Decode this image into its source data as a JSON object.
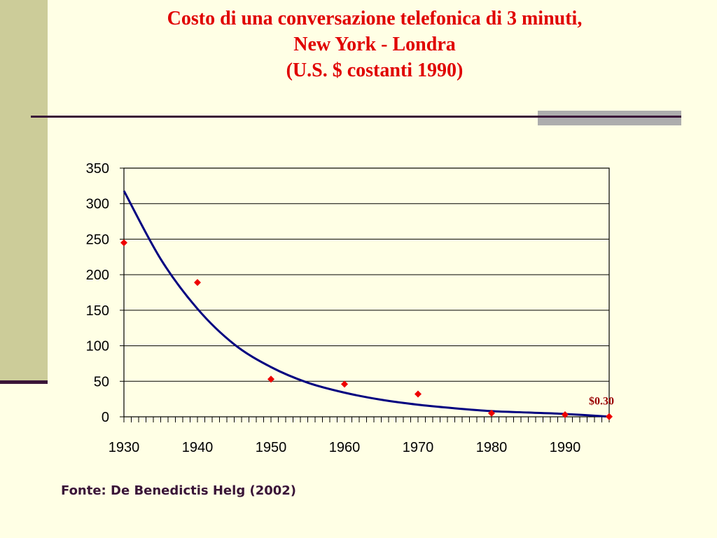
{
  "title": {
    "line1": "Costo di una conversazione telefonica di 3 minuti,",
    "line2": "New York - Londra",
    "line3": "(U.S. $ costanti 1990)"
  },
  "source_note": "Fonte: De Benedictis Helg (2002)",
  "colors": {
    "background": "#FFFFE5",
    "side_band": "#CCCC99",
    "rule": "#3A1538",
    "title": "#E00000",
    "curve": "#000080",
    "points": "#EE0000",
    "annotation": "#990000"
  },
  "chart_data": {
    "type": "scatter",
    "title": "Costo di una conversazione telefonica di 3 minuti, New York - Londra (U.S. $ costanti 1990)",
    "xlim": [
      1930,
      1996
    ],
    "ylim": [
      0,
      350
    ],
    "x_ticks": [
      1930,
      1940,
      1950,
      1960,
      1970,
      1980,
      1990
    ],
    "y_ticks": [
      0,
      50,
      100,
      150,
      200,
      250,
      300,
      350
    ],
    "grid": "horizontal",
    "series": [
      {
        "kind": "points",
        "marker": "diamond",
        "x": [
          1930,
          1940,
          1950,
          1960,
          1970,
          1980,
          1990,
          1996
        ],
        "y": [
          245,
          189,
          53,
          46,
          32,
          5,
          3,
          0.3
        ]
      },
      {
        "kind": "trendline",
        "x": [
          1930,
          1935,
          1940,
          1945,
          1950,
          1955,
          1960,
          1965,
          1970,
          1975,
          1980,
          1985,
          1990,
          1996
        ],
        "y": [
          318,
          222,
          152,
          102,
          70,
          48,
          34,
          24,
          17,
          12,
          8,
          6,
          4,
          0.3
        ]
      }
    ],
    "annotations": [
      {
        "text": "$0.30",
        "x": 1996,
        "y": 0.3
      }
    ]
  }
}
